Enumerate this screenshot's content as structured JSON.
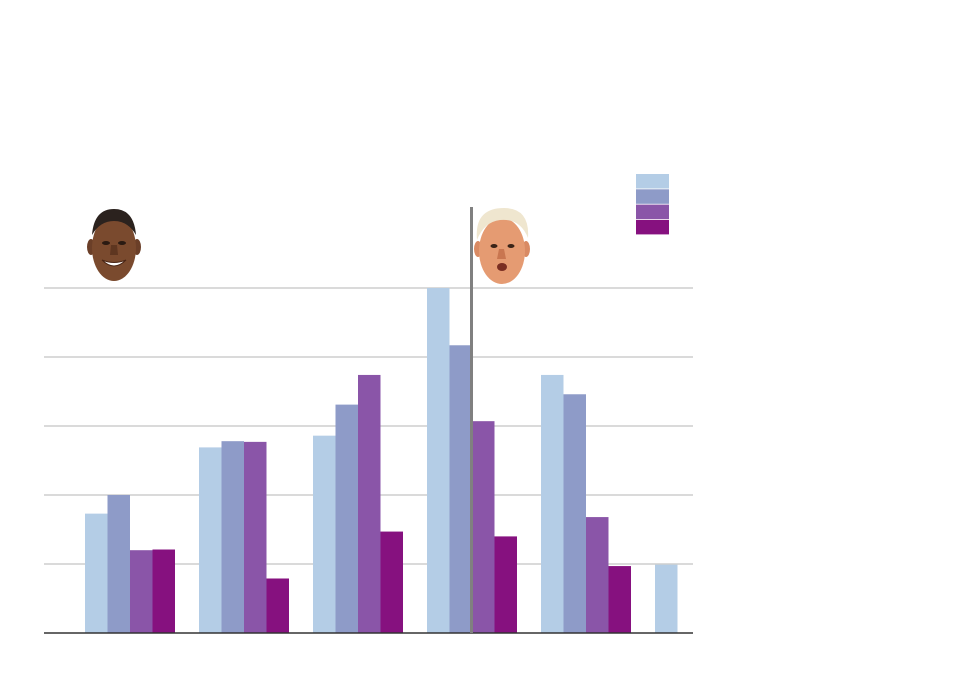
{
  "chart_data": {
    "type": "bar",
    "title": "",
    "xlabel": "",
    "ylabel": "",
    "ylim": [
      0,
      5
    ],
    "grid": true,
    "legend_placement": "top-right",
    "group_count": 6,
    "series": [
      {
        "color": "#b4cde6",
        "values": [
          1.73,
          2.69,
          2.86,
          5.0,
          3.74,
          0.99
        ]
      },
      {
        "color": "#8e9bc8",
        "values": [
          2.0,
          2.78,
          3.31,
          4.17,
          3.46,
          null
        ]
      },
      {
        "color": "#8a55a8",
        "values": [
          1.2,
          2.77,
          3.74,
          3.07,
          1.68,
          null
        ]
      },
      {
        "color": "#86117f",
        "values": [
          1.21,
          0.79,
          1.47,
          1.4,
          0.97,
          null
        ]
      }
    ],
    "annotations": [
      {
        "type": "portrait",
        "name": "obama-portrait",
        "group": 0
      },
      {
        "type": "portrait",
        "name": "trump-portrait",
        "group": 4
      },
      {
        "type": "divider",
        "name": "administration-divider",
        "between_groups": [
          3,
          4
        ]
      }
    ]
  }
}
